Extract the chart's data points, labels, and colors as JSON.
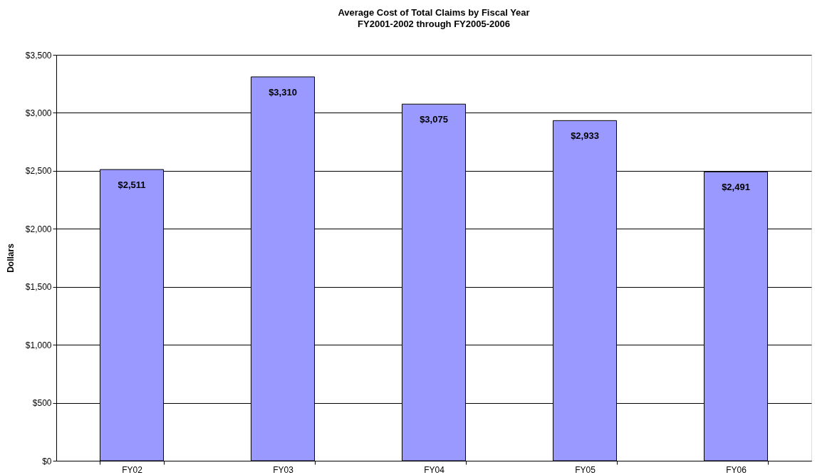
{
  "chart_data": {
    "type": "bar",
    "title": "Average Cost of Total Claims by Fiscal Year",
    "subtitle": "FY2001-2002 through FY2005-2006",
    "ylabel": "Dollars",
    "categories": [
      "FY02",
      "FY03",
      "FY04",
      "FY05",
      "FY06"
    ],
    "values": [
      2511,
      3310,
      3075,
      2933,
      2491
    ],
    "value_labels": [
      "$2,511",
      "$3,310",
      "$3,075",
      "$2,933",
      "$2,491"
    ],
    "color": "#9999ff",
    "ylim": [
      0,
      3500
    ],
    "yticks": [
      {
        "value": 0,
        "label": "$0"
      },
      {
        "value": 500,
        "label": "$500"
      },
      {
        "value": 1000,
        "label": "$1,000"
      },
      {
        "value": 1500,
        "label": "$1,500"
      },
      {
        "value": 2000,
        "label": "$2,000"
      },
      {
        "value": 2500,
        "label": "$2,500"
      },
      {
        "value": 3000,
        "label": "$3,000"
      },
      {
        "value": 3500,
        "label": "$3,500"
      }
    ],
    "grid": "y"
  }
}
